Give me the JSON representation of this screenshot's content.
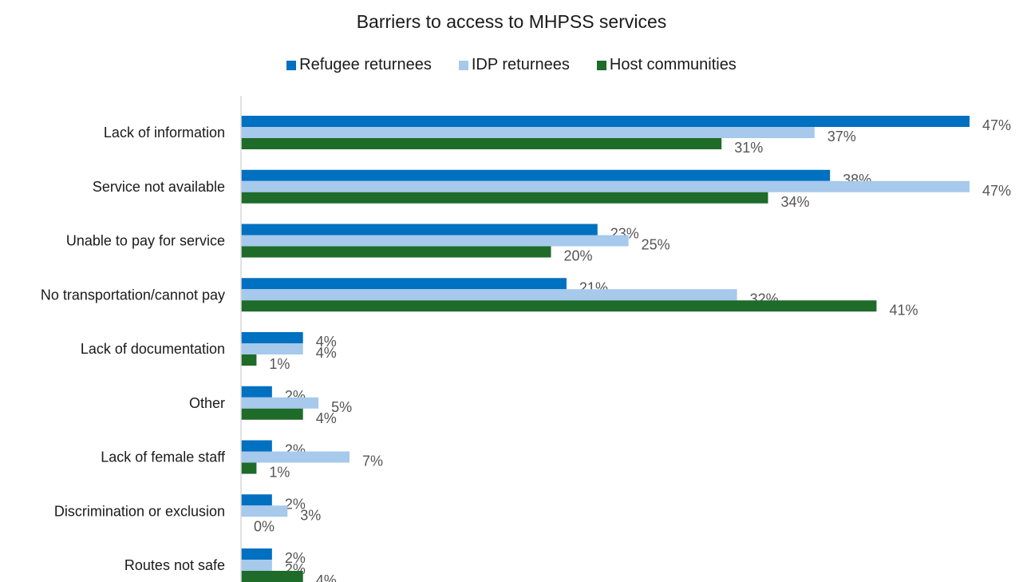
{
  "chart_data": {
    "type": "bar",
    "orientation": "horizontal",
    "title": "Barriers to access to MHPSS services",
    "categories": [
      "Lack of information",
      "Service not available",
      "Unable to pay for service",
      "No transportation/cannot pay",
      "Lack of documentation",
      "Other",
      "Lack of female staff",
      "Discrimination or exclusion",
      "Routes not safe"
    ],
    "series": [
      {
        "name": "Refugee returnees",
        "color": "#0070c0",
        "values": [
          47,
          38,
          23,
          21,
          4,
          2,
          2,
          2,
          2
        ]
      },
      {
        "name": "IDP returnees",
        "color": "#a6c9ec",
        "values": [
          37,
          47,
          25,
          32,
          4,
          5,
          7,
          3,
          2
        ]
      },
      {
        "name": "Host communities",
        "color": "#1e6b2a",
        "values": [
          31,
          34,
          20,
          41,
          1,
          4,
          1,
          0,
          4
        ]
      }
    ],
    "value_suffix": "%",
    "xlim": [
      0,
      47
    ],
    "legend_position": "top",
    "gridlines": false,
    "xaxis_visible": false
  }
}
